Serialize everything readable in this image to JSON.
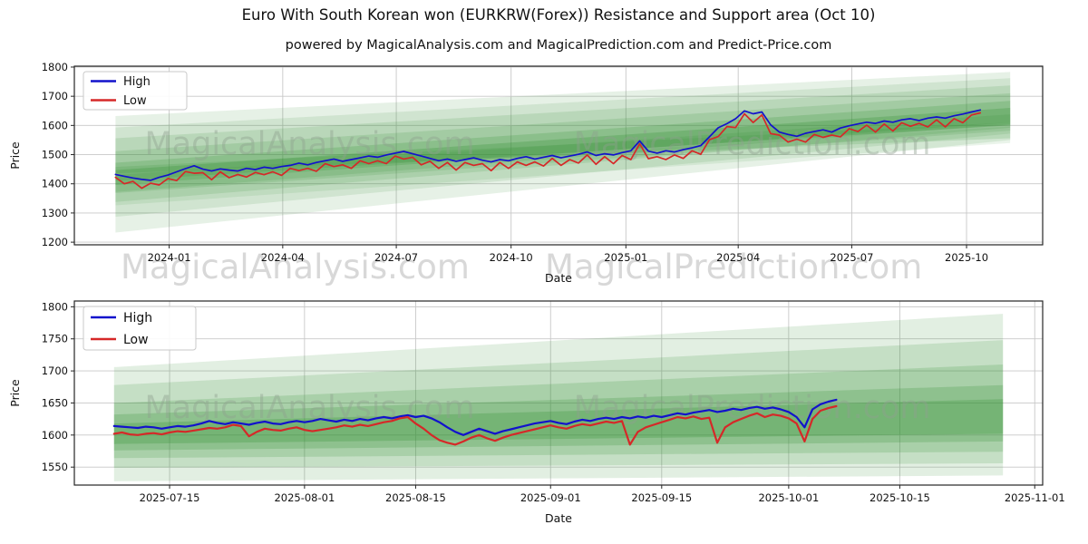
{
  "page": {
    "title": "Euro With South Korean won (EURKRW(Forex)) Resistance and Support area (Oct 10)",
    "subtitle": "powered by MagicalAnalysis.com and MagicalPrediction.com and Predict-Price.com",
    "watermarks": {
      "left": "MagicalAnalysis.com",
      "right": "MagicalPrediction.com"
    }
  },
  "colors": {
    "high": "#1212cc",
    "low": "#d62828",
    "band": "#2f8f2f",
    "grid": "#c8c8c8",
    "spine": "#262626",
    "tick_text": "#111111",
    "watermark_inplot": "#8fa08f",
    "watermark_row": "#d8d8d8",
    "legend_border": "#c9c9c9"
  },
  "chart_data": [
    {
      "id": "full-history",
      "type": "line",
      "xlabel": "Date",
      "ylabel": "Price",
      "xlim": [
        -76,
        700
      ],
      "ylim": [
        1191,
        1803
      ],
      "grid": true,
      "line_width": 1.7,
      "x_ticks": [
        {
          "pos": 0,
          "label": "2024-01"
        },
        {
          "pos": 91,
          "label": "2024-04"
        },
        {
          "pos": 182,
          "label": "2024-07"
        },
        {
          "pos": 274,
          "label": "2024-10"
        },
        {
          "pos": 366,
          "label": "2025-01"
        },
        {
          "pos": 456,
          "label": "2025-04"
        },
        {
          "pos": 547,
          "label": "2025-07"
        },
        {
          "pos": 639,
          "label": "2025-10"
        }
      ],
      "y_ticks": [
        {
          "pos": 1200,
          "label": "1200"
        },
        {
          "pos": 1300,
          "label": "1300"
        },
        {
          "pos": 1400,
          "label": "1400"
        },
        {
          "pos": 1500,
          "label": "1500"
        },
        {
          "pos": 1600,
          "label": "1600"
        },
        {
          "pos": 1700,
          "label": "1700"
        },
        {
          "pos": 1800,
          "label": "1800"
        }
      ],
      "legend": {
        "position": "top-left",
        "width": 114,
        "height": 42,
        "font": 13,
        "entries": [
          {
            "label": "High",
            "color": "high"
          },
          {
            "label": "Low",
            "color": "low"
          }
        ]
      },
      "watermarks": [
        {
          "text": "MagicalAnalysis.com",
          "fx": 0.243,
          "fy": 0.43,
          "size": 35
        },
        {
          "text": "MagicalPrediction.com",
          "fx": 0.7,
          "fy": 0.43,
          "size": 35
        }
      ],
      "bands": [
        {
          "x0": -43,
          "t0": 1632,
          "b0": 1233,
          "x1": 674,
          "t1": 1783,
          "b1": 1550,
          "a": 0.12
        },
        {
          "x0": -43,
          "t0": 1593,
          "b0": 1287,
          "x1": 674,
          "t1": 1762,
          "b1": 1572,
          "a": 0.12
        },
        {
          "x0": -43,
          "t0": 1556,
          "b0": 1338,
          "x1": 674,
          "t1": 1737,
          "b1": 1592,
          "a": 0.14
        },
        {
          "x0": -43,
          "t0": 1512,
          "b0": 1372,
          "x1": 674,
          "t1": 1710,
          "b1": 1604,
          "a": 0.16
        },
        {
          "x0": -43,
          "t0": 1472,
          "b0": 1396,
          "x1": 674,
          "t1": 1684,
          "b1": 1610,
          "a": 0.2
        },
        {
          "x0": -43,
          "t0": 1447,
          "b0": 1410,
          "x1": 674,
          "t1": 1660,
          "b1": 1600,
          "a": 0.26
        },
        {
          "x0": -43,
          "t0": 1430,
          "b0": 1368,
          "x1": 674,
          "t1": 1638,
          "b1": 1582,
          "a": 0.14
        },
        {
          "x0": -43,
          "t0": 1458,
          "b0": 1436,
          "x1": 674,
          "t1": 1610,
          "b1": 1556,
          "a": 0.16
        },
        {
          "x0": -43,
          "t0": 1410,
          "b0": 1326,
          "x1": 674,
          "t1": 1596,
          "b1": 1540,
          "a": 0.1
        }
      ],
      "series": [
        {
          "name": "High",
          "color": "high",
          "x_start": -43,
          "x_step": 7,
          "values": [
            1432,
            1426,
            1420,
            1415,
            1412,
            1422,
            1430,
            1441,
            1452,
            1462,
            1450,
            1444,
            1451,
            1447,
            1444,
            1453,
            1449,
            1457,
            1453,
            1459,
            1463,
            1471,
            1465,
            1473,
            1479,
            1485,
            1477,
            1483,
            1489,
            1495,
            1491,
            1499,
            1505,
            1511,
            1503,
            1495,
            1487,
            1479,
            1485,
            1477,
            1483,
            1489,
            1481,
            1475,
            1483,
            1479,
            1487,
            1493,
            1485,
            1491,
            1497,
            1489,
            1495,
            1501,
            1509,
            1497,
            1503,
            1499,
            1507,
            1513,
            1547,
            1512,
            1505,
            1513,
            1509,
            1517,
            1523,
            1531,
            1561,
            1592,
            1606,
            1623,
            1650,
            1640,
            1646,
            1602,
            1577,
            1569,
            1563,
            1573,
            1579,
            1585,
            1577,
            1591,
            1599,
            1605,
            1611,
            1607,
            1615,
            1611,
            1619,
            1623,
            1617,
            1625,
            1629,
            1625,
            1633,
            1639,
            1646,
            1653
          ]
        },
        {
          "name": "Low",
          "color": "low",
          "x_start": -43,
          "x_step": 7,
          "values": [
            1422,
            1400,
            1408,
            1385,
            1402,
            1396,
            1418,
            1411,
            1442,
            1436,
            1438,
            1414,
            1441,
            1421,
            1432,
            1423,
            1439,
            1431,
            1441,
            1429,
            1453,
            1445,
            1453,
            1443,
            1469,
            1459,
            1465,
            1453,
            1479,
            1469,
            1479,
            1469,
            1495,
            1485,
            1491,
            1465,
            1477,
            1453,
            1473,
            1447,
            1473,
            1463,
            1469,
            1445,
            1473,
            1453,
            1475,
            1463,
            1475,
            1461,
            1487,
            1463,
            1483,
            1471,
            1499,
            1467,
            1493,
            1469,
            1497,
            1483,
            1537,
            1486,
            1493,
            1483,
            1499,
            1487,
            1513,
            1501,
            1551,
            1562,
            1596,
            1593,
            1640,
            1610,
            1636,
            1572,
            1567,
            1543,
            1553,
            1543,
            1569,
            1559,
            1567,
            1561,
            1589,
            1579,
            1601,
            1577,
            1605,
            1581,
            1609,
            1597,
            1607,
            1595,
            1619,
            1595,
            1623,
            1609,
            1636,
            1643
          ]
        }
      ]
    },
    {
      "id": "recent",
      "type": "line",
      "xlabel": "Date",
      "ylabel": "Price",
      "xlim": [
        -5,
        117
      ],
      "ylim": [
        1522,
        1809
      ],
      "grid": true,
      "line_width": 2.2,
      "x_ticks": [
        {
          "pos": 7,
          "label": "2025-07-15"
        },
        {
          "pos": 24,
          "label": "2025-08-01"
        },
        {
          "pos": 38,
          "label": "2025-08-15"
        },
        {
          "pos": 55,
          "label": "2025-09-01"
        },
        {
          "pos": 69,
          "label": "2025-09-15"
        },
        {
          "pos": 85,
          "label": "2025-10-01"
        },
        {
          "pos": 99,
          "label": "2025-10-15"
        },
        {
          "pos": 116,
          "label": "2025-11-01"
        }
      ],
      "y_ticks": [
        {
          "pos": 1550,
          "label": "1550"
        },
        {
          "pos": 1600,
          "label": "1600"
        },
        {
          "pos": 1650,
          "label": "1650"
        },
        {
          "pos": 1700,
          "label": "1700"
        },
        {
          "pos": 1750,
          "label": "1750"
        },
        {
          "pos": 1800,
          "label": "1800"
        }
      ],
      "legend": {
        "position": "top-left",
        "width": 124,
        "height": 48,
        "font": 14,
        "entries": [
          {
            "label": "High",
            "color": "high"
          },
          {
            "label": "Low",
            "color": "low"
          }
        ]
      },
      "watermarks": [
        {
          "text": "MagicalAnalysis.com",
          "fx": 0.243,
          "fy": 0.575,
          "size": 35
        },
        {
          "text": "MagicalPrediction.com",
          "fx": 0.7,
          "fy": 0.575,
          "size": 35
        }
      ],
      "bands": [
        {
          "x0": 0,
          "t0": 1706,
          "b0": 1528,
          "x1": 112,
          "t1": 1789,
          "b1": 1537,
          "a": 0.14
        },
        {
          "x0": 0,
          "t0": 1678,
          "b0": 1549,
          "x1": 112,
          "t1": 1748,
          "b1": 1556,
          "a": 0.16
        },
        {
          "x0": 0,
          "t0": 1650,
          "b0": 1564,
          "x1": 112,
          "t1": 1710,
          "b1": 1574,
          "a": 0.18
        },
        {
          "x0": 0,
          "t0": 1632,
          "b0": 1576,
          "x1": 112,
          "t1": 1678,
          "b1": 1590,
          "a": 0.22
        },
        {
          "x0": 0,
          "t0": 1618,
          "b0": 1586,
          "x1": 112,
          "t1": 1656,
          "b1": 1602,
          "a": 0.26
        }
      ],
      "series": [
        {
          "name": "High",
          "color": "high",
          "x_start": 0,
          "x_step": 1,
          "values": [
            1614,
            1613,
            1612,
            1611,
            1613,
            1612,
            1610,
            1612,
            1614,
            1613,
            1615,
            1618,
            1622,
            1619,
            1617,
            1620,
            1618,
            1616,
            1619,
            1621,
            1618,
            1617,
            1620,
            1622,
            1620,
            1622,
            1625,
            1623,
            1621,
            1624,
            1622,
            1625,
            1623,
            1626,
            1628,
            1626,
            1629,
            1631,
            1628,
            1630,
            1626,
            1620,
            1612,
            1605,
            1600,
            1605,
            1610,
            1606,
            1602,
            1606,
            1609,
            1612,
            1615,
            1618,
            1620,
            1622,
            1619,
            1617,
            1621,
            1624,
            1622,
            1625,
            1627,
            1625,
            1628,
            1626,
            1629,
            1627,
            1630,
            1628,
            1631,
            1634,
            1632,
            1635,
            1637,
            1639,
            1636,
            1638,
            1641,
            1639,
            1642,
            1644,
            1641,
            1643,
            1640,
            1636,
            1628,
            1612,
            1640,
            1648,
            1652,
            1655
          ]
        },
        {
          "name": "Low",
          "color": "low",
          "x_start": 0,
          "x_step": 1,
          "values": [
            1602,
            1604,
            1601,
            1600,
            1602,
            1603,
            1601,
            1604,
            1606,
            1605,
            1607,
            1609,
            1611,
            1610,
            1612,
            1616,
            1614,
            1598,
            1605,
            1610,
            1608,
            1607,
            1610,
            1612,
            1608,
            1606,
            1608,
            1610,
            1612,
            1615,
            1613,
            1616,
            1614,
            1617,
            1620,
            1622,
            1626,
            1628,
            1618,
            1610,
            1600,
            1592,
            1588,
            1585,
            1590,
            1596,
            1600,
            1595,
            1591,
            1596,
            1600,
            1603,
            1606,
            1609,
            1612,
            1615,
            1612,
            1610,
            1614,
            1617,
            1615,
            1618,
            1621,
            1619,
            1622,
            1585,
            1605,
            1612,
            1616,
            1620,
            1624,
            1628,
            1626,
            1629,
            1625,
            1627,
            1588,
            1612,
            1620,
            1625,
            1630,
            1634,
            1628,
            1632,
            1630,
            1626,
            1618,
            1590,
            1625,
            1638,
            1642,
            1645
          ]
        }
      ]
    }
  ]
}
